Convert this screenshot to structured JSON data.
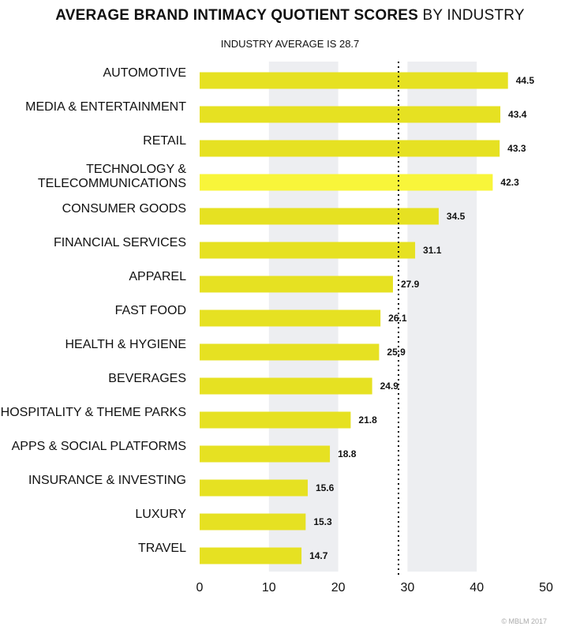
{
  "header": {
    "title_bold": "AVERAGE BRAND INTIMACY QUOTIENT SCORES",
    "title_regular": "BY INDUSTRY",
    "subtitle": "INDUSTRY AVERAGE IS 28.7"
  },
  "footer": {
    "credit": "© MBLM 2017"
  },
  "colors": {
    "bar": "#e6e122",
    "bar_highlight": "#f8f53a",
    "band": "#edeef1",
    "text": "#111111"
  },
  "chart_data": {
    "type": "bar",
    "orientation": "horizontal",
    "title": "AVERAGE BRAND INTIMACY QUOTIENT SCORES BY INDUSTRY",
    "subtitle": "INDUSTRY AVERAGE IS 28.7",
    "categories": [
      [
        "AUTOMOTIVE"
      ],
      [
        "MEDIA & ENTERTAINMENT"
      ],
      [
        "RETAIL"
      ],
      [
        "TECHNOLOGY &",
        "TELECOMMUNICATIONS"
      ],
      [
        "CONSUMER GOODS"
      ],
      [
        "FINANCIAL SERVICES"
      ],
      [
        "APPAREL"
      ],
      [
        "FAST FOOD"
      ],
      [
        "HEALTH & HYGIENE"
      ],
      [
        "BEVERAGES"
      ],
      [
        "HOSPITALITY & THEME PARKS"
      ],
      [
        "APPS & SOCIAL PLATFORMS"
      ],
      [
        "INSURANCE & INVESTING"
      ],
      [
        "LUXURY"
      ],
      [
        "TRAVEL"
      ]
    ],
    "values": [
      44.5,
      43.4,
      43.3,
      42.3,
      34.5,
      31.1,
      27.9,
      26.1,
      25.9,
      24.9,
      21.8,
      18.8,
      15.6,
      15.3,
      14.7
    ],
    "value_labels": [
      "44.5",
      "43.4",
      "43.3",
      "42.3",
      "34.5",
      "31.1",
      "27.9",
      "26.1",
      "25.9",
      "24.9",
      "21.8",
      "18.8",
      "15.6",
      "15.3",
      "14.7"
    ],
    "highlight": "TECHNOLOGY & TELECOMMUNICATIONS",
    "average": 28.7,
    "xlim": [
      0,
      50
    ],
    "xticks": [
      0,
      10,
      20,
      30,
      40,
      50
    ],
    "xtick_labels": [
      "0",
      "10",
      "20",
      "30",
      "40",
      "50"
    ],
    "xlabel": "",
    "ylabel": "",
    "grid": "alternating vertical bands",
    "legend": "none"
  }
}
